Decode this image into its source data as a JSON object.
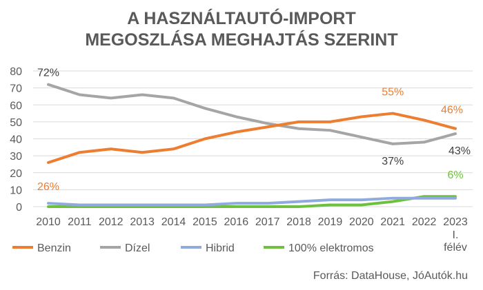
{
  "chart_data": {
    "type": "line",
    "title": [
      "A HASZNÁLTAUTÓ-IMPORT",
      "MEGOSZLÁSA MEGHAJTÁS SZERINT"
    ],
    "categories": [
      "2010",
      "2011",
      "2012",
      "2013",
      "2014",
      "2015",
      "2016",
      "2017",
      "2018",
      "2019",
      "2020",
      "2021",
      "2022",
      "2023"
    ],
    "last_category_sublabel": [
      "I.",
      "félév"
    ],
    "ylim": [
      0,
      80
    ],
    "yticks": [
      0,
      10,
      20,
      30,
      40,
      50,
      60,
      70,
      80
    ],
    "grid": true,
    "legend": "bottom",
    "series": [
      {
        "name": "Benzin",
        "color": "#ED7D31",
        "values": [
          26,
          32,
          34,
          32,
          34,
          40,
          44,
          47,
          50,
          50,
          53,
          55,
          51,
          46
        ]
      },
      {
        "name": "Dízel",
        "color": "#A5A5A5",
        "values": [
          72,
          66,
          64,
          66,
          64,
          58,
          53,
          49,
          46,
          45,
          41,
          37,
          38,
          43
        ]
      },
      {
        "name": "Hibrid",
        "color": "#8FAADC",
        "values": [
          2,
          1,
          1,
          1,
          1,
          1,
          2,
          2,
          3,
          4,
          4,
          5,
          5,
          5
        ]
      },
      {
        "name": "100% elektromos",
        "color": "#70C040",
        "values": [
          0,
          0,
          0,
          0,
          0,
          0,
          0,
          0,
          0,
          1,
          1,
          3,
          6,
          6
        ]
      }
    ],
    "annotations": [
      {
        "text": "72%",
        "series": "Dízel",
        "x": "2010",
        "color": "#404040"
      },
      {
        "text": "26%",
        "series": "Benzin",
        "x": "2010",
        "color": "#ED7D31"
      },
      {
        "text": "55%",
        "series": "Benzin",
        "x": "2021",
        "color": "#ED7D31"
      },
      {
        "text": "46%",
        "series": "Benzin",
        "x": "2023",
        "color": "#ED7D31"
      },
      {
        "text": "37%",
        "series": "Dízel",
        "x": "2021",
        "color": "#404040"
      },
      {
        "text": "43%",
        "series": "Dízel",
        "x": "2023",
        "color": "#404040"
      },
      {
        "text": "6%",
        "series": "100% elektromos",
        "x": "2023",
        "color": "#70C040"
      }
    ]
  },
  "source": "Forrás: DataHouse, JóAutók.hu"
}
